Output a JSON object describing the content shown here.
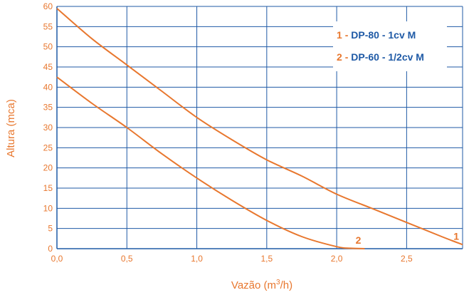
{
  "chart_data": {
    "type": "line",
    "title": "",
    "xlabel": "Vazão (m³/h)",
    "xlabel_parts": {
      "base": "Vazão (m",
      "sup": "3",
      "tail": "/h)"
    },
    "ylabel": "Altura (mca)",
    "xlim": [
      0,
      2.9
    ],
    "ylim": [
      0,
      60
    ],
    "x_ticks": [
      "0,0",
      "0,5",
      "1,0",
      "1,5",
      "2,0",
      "2,5"
    ],
    "x_tick_values": [
      0,
      0.5,
      1.0,
      1.5,
      2.0,
      2.5
    ],
    "y_ticks": [
      "0",
      "5",
      "10",
      "15",
      "20",
      "25",
      "30",
      "35",
      "40",
      "45",
      "50",
      "55",
      "60"
    ],
    "y_tick_values": [
      0,
      5,
      10,
      15,
      20,
      25,
      30,
      35,
      40,
      45,
      50,
      55,
      60
    ],
    "grid": true,
    "legend_position": "top-right",
    "colors": {
      "curve": "#e8772e",
      "grid": "#1f5aa6",
      "legend_name": "#1f5aa6",
      "legend_number": "#e8772e"
    },
    "series": [
      {
        "name": "DP-80 - 1cv M",
        "number": "1",
        "x": [
          0,
          0.25,
          0.5,
          0.75,
          1.0,
          1.25,
          1.5,
          1.75,
          2.0,
          2.25,
          2.5,
          2.75,
          2.9
        ],
        "values": [
          59.5,
          52,
          45.5,
          39,
          32.5,
          27,
          22,
          18,
          13.5,
          10,
          6.5,
          3,
          1
        ]
      },
      {
        "name": "DP-60 - 1/2cv M",
        "number": "2",
        "x": [
          0,
          0.25,
          0.5,
          0.75,
          1.0,
          1.25,
          1.5,
          1.75,
          2.0,
          2.1,
          2.2
        ],
        "values": [
          42.5,
          36,
          30,
          23.5,
          17.5,
          12,
          7,
          3,
          0.5,
          0.1,
          0
        ]
      }
    ]
  }
}
